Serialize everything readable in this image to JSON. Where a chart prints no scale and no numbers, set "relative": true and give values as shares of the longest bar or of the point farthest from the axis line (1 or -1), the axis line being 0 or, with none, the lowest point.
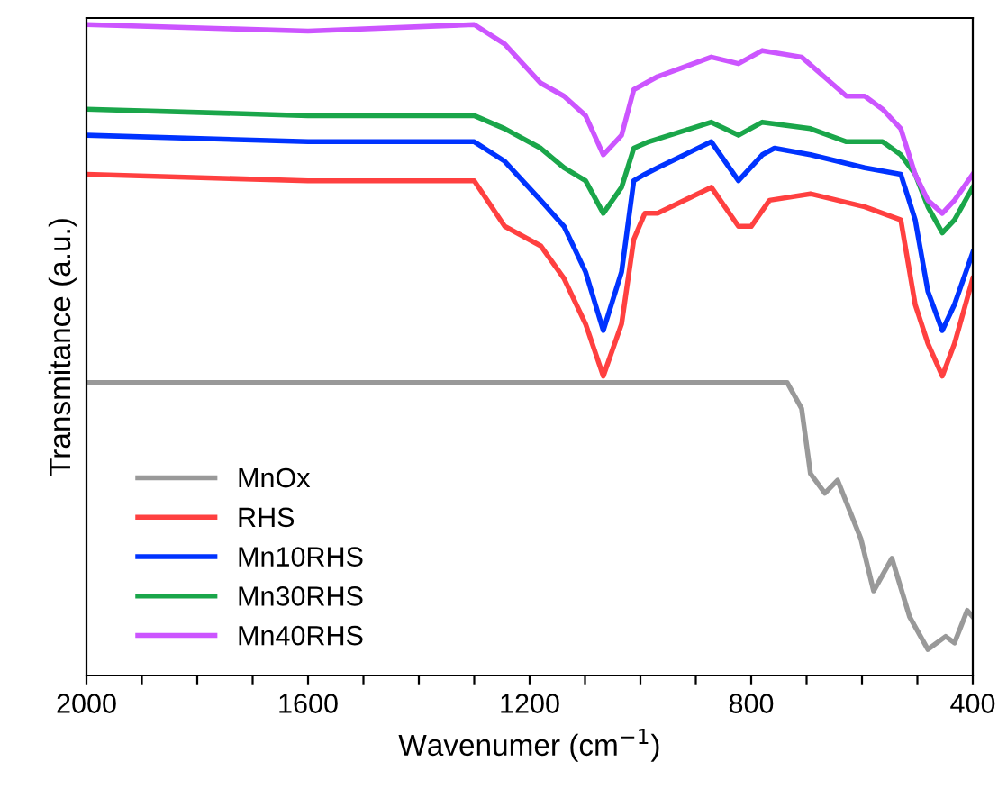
{
  "chart_data": {
    "type": "line",
    "relative": true,
    "xlabel": "Wavenumer (cm$^{−1}$)",
    "ylabel": "Transmitance (a.u.)",
    "xlim": [
      2000,
      400
    ],
    "xticks": [
      2000,
      {
        "value": 1900,
        "label": null
      },
      {
        "value": 1800,
        "label": null
      },
      {
        "value": 1700,
        "label": null
      },
      1600,
      {
        "value": 1500,
        "label": null
      },
      {
        "value": 1400,
        "label": null
      },
      {
        "value": 1300,
        "label": null
      },
      1200,
      {
        "value": 1100,
        "label": null
      },
      {
        "value": 1000,
        "label": null
      },
      {
        "value": 900,
        "label": null
      },
      800,
      {
        "value": 700,
        "label": null
      },
      {
        "value": 600,
        "label": null
      },
      {
        "value": 500,
        "label": null
      },
      400
    ],
    "tick_labels": "x",
    "legend": "bottom left",
    "grid": false,
    "line_style": "solid",
    "marker": "none",
    "series": [
      {
        "name": "MnOx",
        "color": "#999999",
        "x": [
          2000,
          1600,
          1300,
          1000,
          800,
          758,
          735,
          709,
          693,
          667,
          644,
          602,
          579,
          546,
          514,
          481,
          449,
          433,
          410,
          400
        ],
        "values": [
          0.45,
          0.45,
          0.45,
          0.45,
          0.45,
          0.45,
          0.45,
          0.41,
          0.31,
          0.28,
          0.3,
          0.21,
          0.13,
          0.18,
          0.09,
          0.04,
          0.06,
          0.05,
          0.1,
          0.09
        ]
      },
      {
        "name": "RHS",
        "color": "#ff4040",
        "x": [
          2000,
          1600,
          1300,
          1245,
          1180,
          1138,
          1099,
          1067,
          1034,
          1012,
          992,
          969,
          872,
          823,
          800,
          767,
          693,
          595,
          530,
          504,
          481,
          455,
          433,
          400
        ],
        "values": [
          0.77,
          0.76,
          0.76,
          0.69,
          0.66,
          0.61,
          0.54,
          0.46,
          0.54,
          0.67,
          0.71,
          0.71,
          0.75,
          0.69,
          0.69,
          0.73,
          0.74,
          0.72,
          0.7,
          0.57,
          0.51,
          0.46,
          0.51,
          0.61
        ]
      },
      {
        "name": "Mn10RHS",
        "color": "#0033ff",
        "x": [
          2000,
          1600,
          1300,
          1245,
          1180,
          1138,
          1099,
          1067,
          1034,
          1012,
          992,
          969,
          872,
          823,
          780,
          758,
          693,
          595,
          530,
          504,
          481,
          455,
          433,
          400
        ],
        "values": [
          0.83,
          0.82,
          0.82,
          0.79,
          0.73,
          0.69,
          0.62,
          0.53,
          0.62,
          0.76,
          0.77,
          0.78,
          0.82,
          0.76,
          0.8,
          0.81,
          0.8,
          0.78,
          0.77,
          0.7,
          0.59,
          0.53,
          0.57,
          0.65
        ]
      },
      {
        "name": "Mn30RHS",
        "color": "#1aa64a",
        "x": [
          2000,
          1600,
          1300,
          1245,
          1180,
          1138,
          1099,
          1067,
          1034,
          1012,
          985,
          872,
          823,
          780,
          693,
          628,
          563,
          530,
          504,
          481,
          455,
          433,
          400
        ],
        "values": [
          0.87,
          0.86,
          0.86,
          0.84,
          0.81,
          0.78,
          0.76,
          0.71,
          0.75,
          0.81,
          0.82,
          0.85,
          0.83,
          0.85,
          0.84,
          0.82,
          0.82,
          0.8,
          0.77,
          0.72,
          0.68,
          0.7,
          0.75
        ]
      },
      {
        "name": "Mn40RHS",
        "color": "#cc55ff",
        "x": [
          2000,
          1600,
          1300,
          1245,
          1180,
          1138,
          1099,
          1067,
          1034,
          1012,
          969,
          872,
          823,
          780,
          709,
          628,
          595,
          563,
          530,
          504,
          481,
          455,
          433,
          400
        ],
        "values": [
          1.0,
          0.99,
          1.0,
          0.97,
          0.91,
          0.89,
          0.86,
          0.8,
          0.83,
          0.9,
          0.92,
          0.95,
          0.94,
          0.96,
          0.95,
          0.89,
          0.89,
          0.87,
          0.84,
          0.77,
          0.73,
          0.71,
          0.73,
          0.77
        ]
      }
    ]
  }
}
